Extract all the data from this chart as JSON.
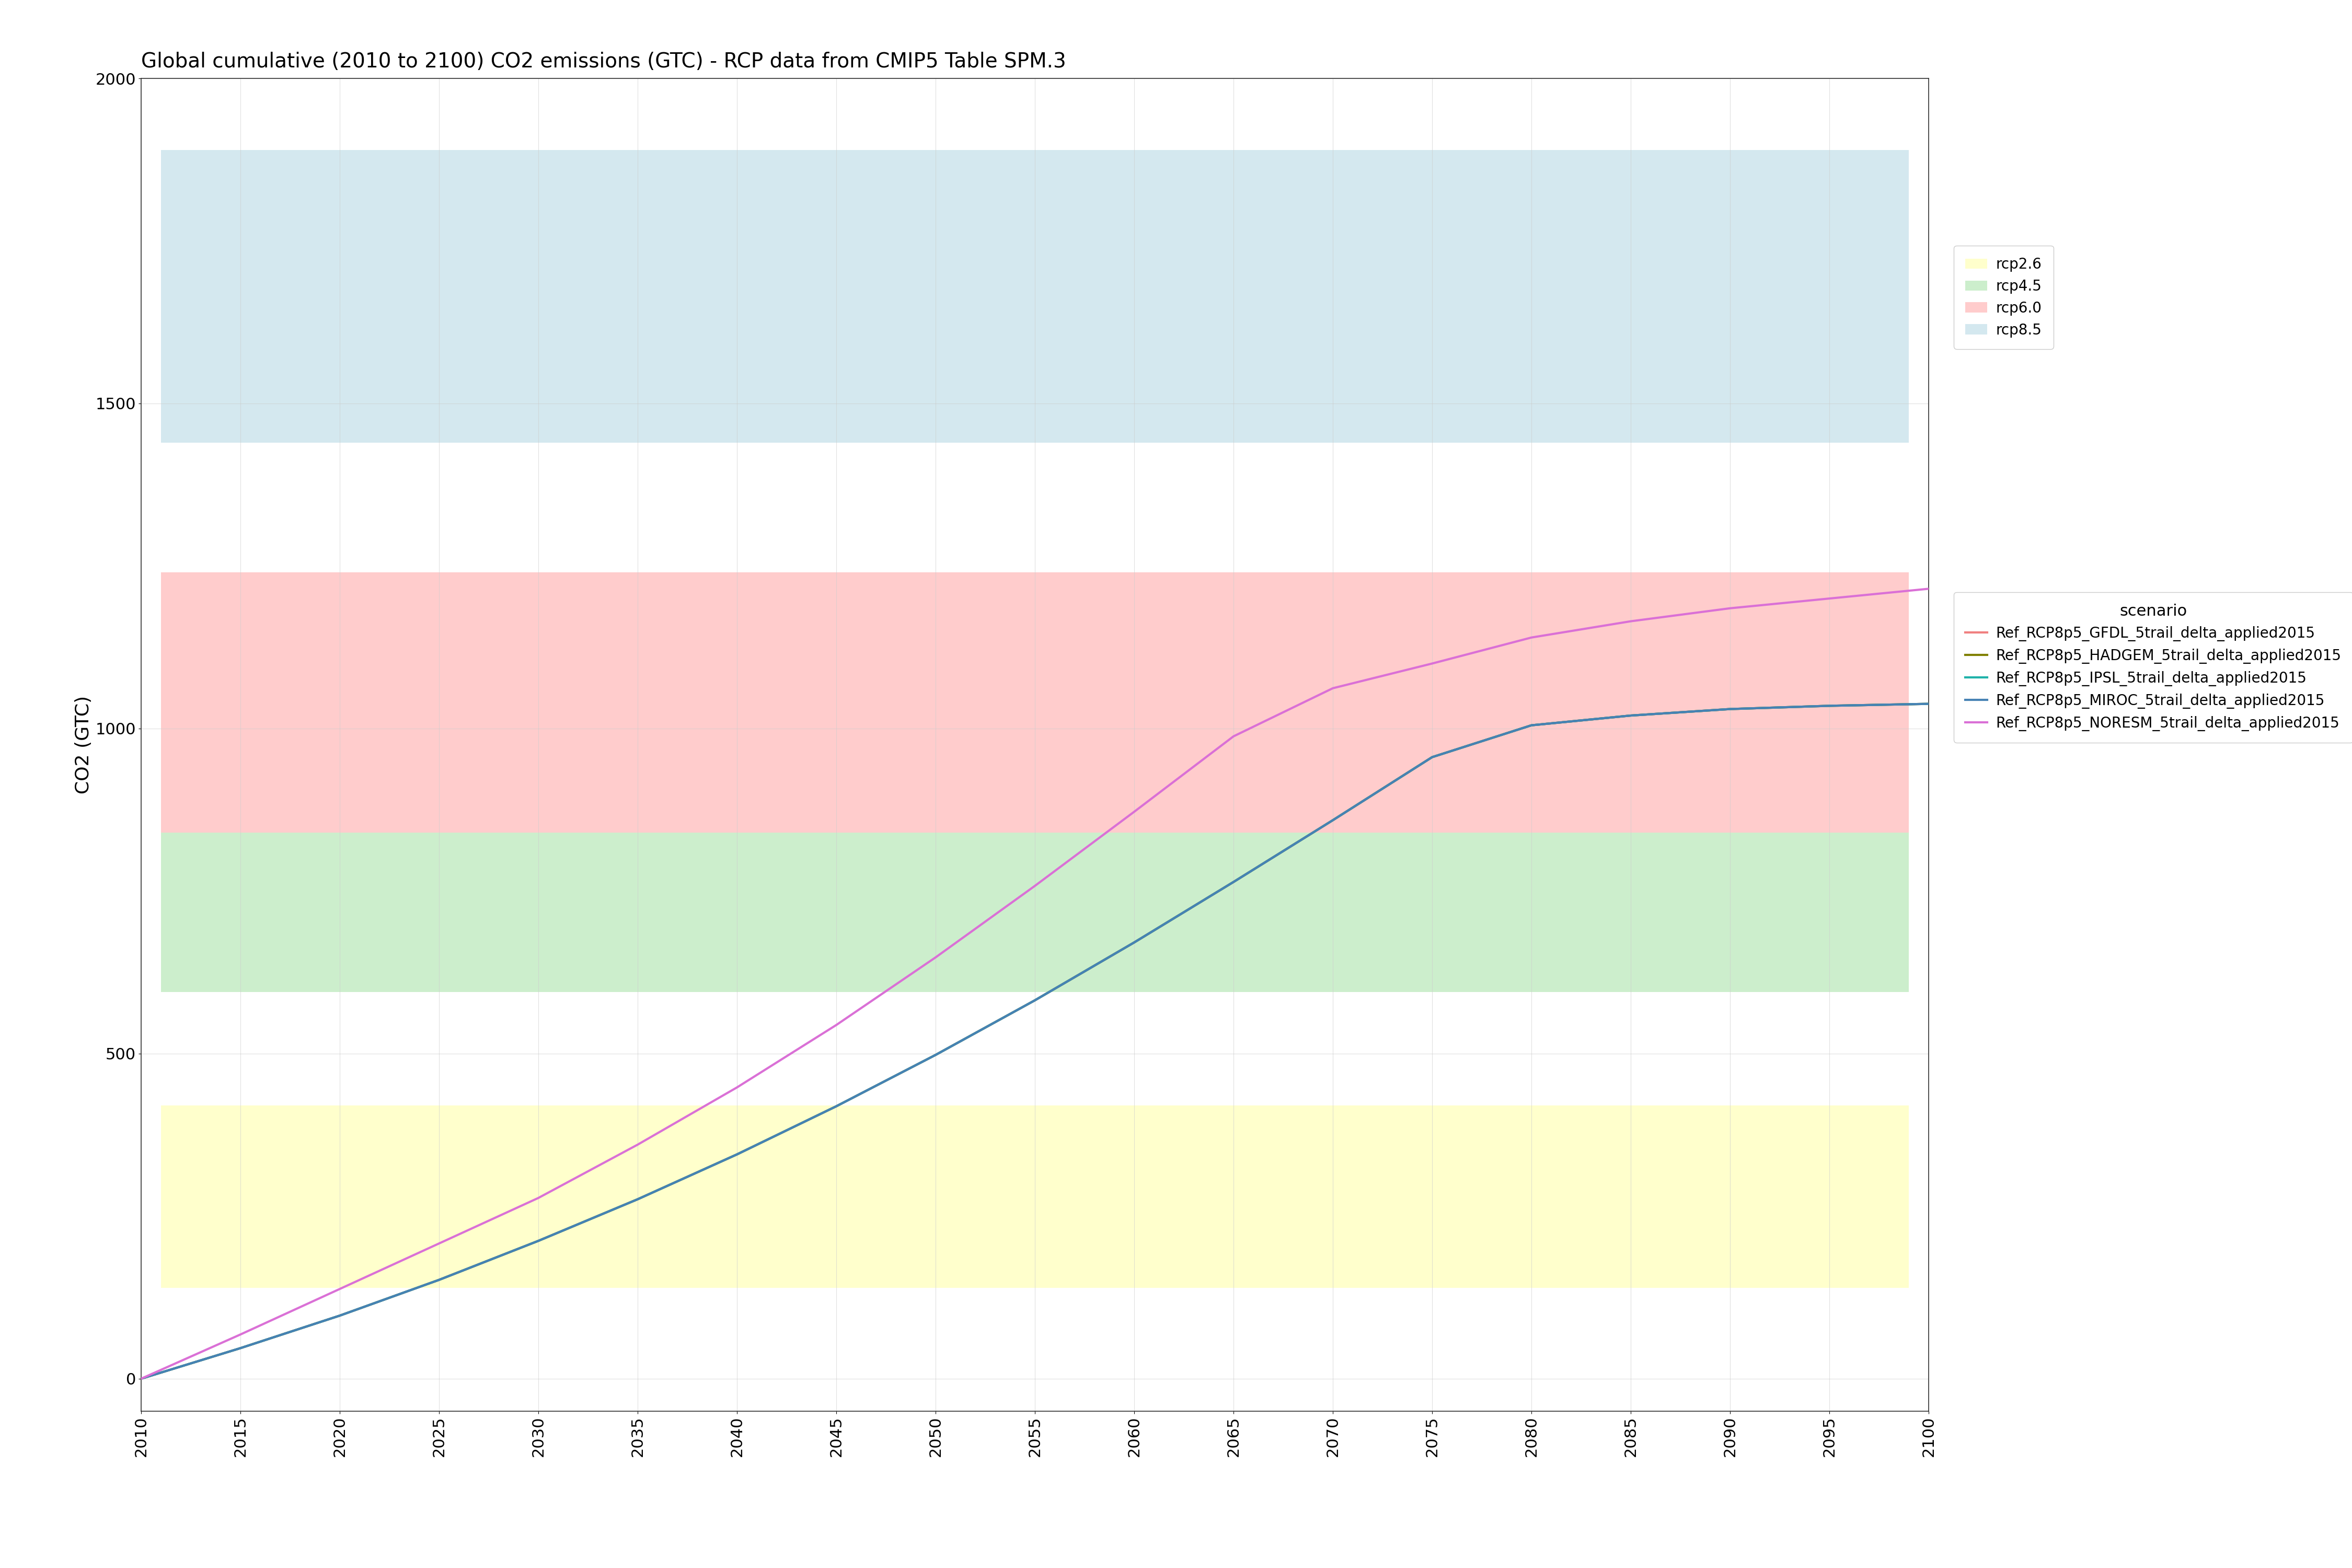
{
  "title": "Global cumulative (2010 to 2100) CO2 emissions (GTC) - RCP data from CMIP5 Table SPM.3",
  "xlabel": "",
  "ylabel": "CO2 (GTC)",
  "xlim": [
    2010,
    2100
  ],
  "ylim": [
    -50,
    2000
  ],
  "yticks": [
    0,
    500,
    1000,
    1500,
    2000
  ],
  "xticks": [
    2010,
    2015,
    2020,
    2025,
    2030,
    2035,
    2040,
    2045,
    2050,
    2055,
    2060,
    2065,
    2070,
    2075,
    2080,
    2085,
    2090,
    2095,
    2100
  ],
  "background_color": "#ffffff",
  "panel_background": "#ffffff",
  "rcp_bands": [
    {
      "label": "rcp2.6",
      "xmin": 2011,
      "xmax": 2099,
      "ymin": 140,
      "ymax": 420,
      "color": "#ffffcc",
      "alpha": 1.0
    },
    {
      "label": "rcp4.5",
      "xmin": 2011,
      "xmax": 2099,
      "ymin": 595,
      "ymax": 840,
      "color": "#cceecc",
      "alpha": 1.0
    },
    {
      "label": "rcp6.0",
      "xmin": 2011,
      "xmax": 2099,
      "ymin": 840,
      "ymax": 1240,
      "color": "#ffcccc",
      "alpha": 1.0
    },
    {
      "label": "rcp8.5",
      "xmin": 2011,
      "xmax": 2099,
      "ymin": 1440,
      "ymax": 1890,
      "color": "#d4e8ef",
      "alpha": 1.0
    }
  ],
  "scenarios": [
    {
      "name": "Ref_RCP8p5_GFDL_5trail_delta_applied2015",
      "color": "#f08080",
      "line_width": 3.0
    },
    {
      "name": "Ref_RCP8p5_HADGEM_5trail_delta_applied2015",
      "color": "#808000",
      "line_width": 3.0
    },
    {
      "name": "Ref_RCP8p5_IPSL_5trail_delta_applied2015",
      "color": "#20b2aa",
      "line_width": 3.0
    },
    {
      "name": "Ref_RCP8p5_MIROC_5trail_delta_applied2015",
      "color": "#4682b4",
      "line_width": 3.0
    },
    {
      "name": "Ref_RCP8p5_NORESM_5trail_delta_applied2015",
      "color": "#da70d6",
      "line_width": 3.0
    }
  ],
  "years": [
    2010,
    2015,
    2020,
    2025,
    2030,
    2035,
    2040,
    2045,
    2050,
    2055,
    2060,
    2065,
    2070,
    2075,
    2080,
    2085,
    2090,
    2095,
    2100
  ],
  "scenario_data": {
    "Ref_RCP8p5_GFDL_5trail_delta_applied2015": [
      0,
      47,
      97,
      152,
      212,
      276,
      345,
      419,
      498,
      582,
      671,
      764,
      859,
      956,
      1005,
      1020,
      1030,
      1035,
      1038
    ],
    "Ref_RCP8p5_HADGEM_5trail_delta_applied2015": [
      0,
      47,
      97,
      152,
      212,
      276,
      345,
      419,
      498,
      582,
      671,
      764,
      859,
      956,
      1005,
      1020,
      1030,
      1035,
      1038
    ],
    "Ref_RCP8p5_IPSL_5trail_delta_applied2015": [
      0,
      47,
      97,
      152,
      212,
      276,
      345,
      419,
      498,
      582,
      671,
      764,
      859,
      956,
      1005,
      1020,
      1030,
      1035,
      1038
    ],
    "Ref_RCP8p5_MIROC_5trail_delta_applied2015": [
      0,
      47,
      97,
      152,
      212,
      276,
      345,
      419,
      498,
      582,
      671,
      764,
      859,
      956,
      1005,
      1020,
      1030,
      1035,
      1038
    ],
    "Ref_RCP8p5_NORESM_5trail_delta_applied2015": [
      0,
      68,
      138,
      208,
      278,
      360,
      448,
      544,
      648,
      758,
      872,
      988,
      1062,
      1100,
      1140,
      1165,
      1185,
      1200,
      1215
    ]
  },
  "grid_color": "#cccccc",
  "grid_alpha": 0.6,
  "grid_linewidth": 0.8,
  "title_fontsize": 28,
  "axis_label_fontsize": 26,
  "tick_fontsize": 22,
  "legend_fontsize": 20,
  "legend_title_fontsize": 22
}
